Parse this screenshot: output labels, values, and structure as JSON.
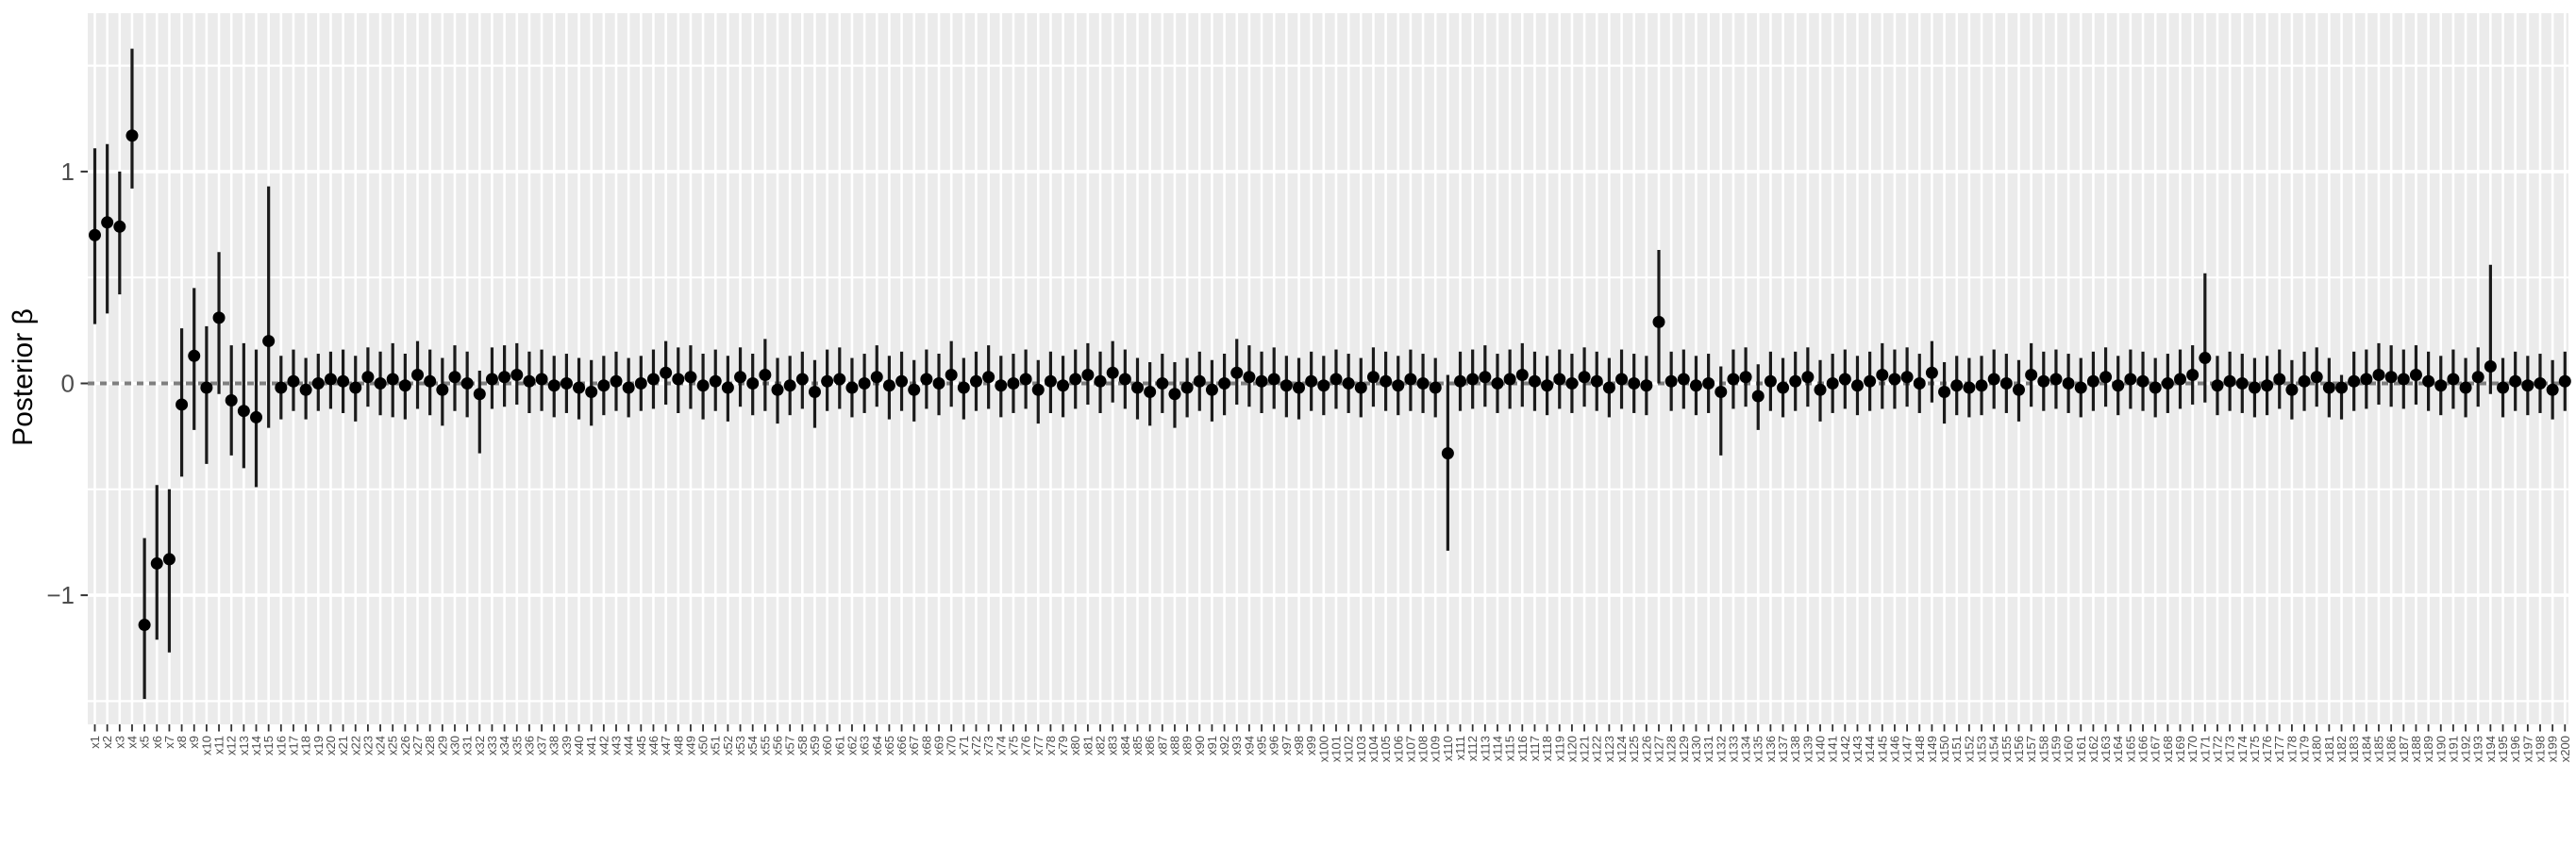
{
  "figure": {
    "y_axis": {
      "title": "Posterior β",
      "ticks": [
        {
          "label": "1",
          "value": 1
        },
        {
          "label": "0",
          "value": 0
        },
        {
          "label": "−1",
          "value": -1
        }
      ]
    }
  },
  "chart_data": {
    "type": "pointrange",
    "title": "",
    "xlabel": "",
    "ylabel": "Posterior β",
    "ylim": [
      -1.61,
      1.75
    ],
    "y_major_gridlines": [
      -1,
      0,
      1
    ],
    "y_minor_gridlines": [
      -1.5,
      -0.5,
      0.5,
      1.5
    ],
    "reference_line": {
      "y": 0,
      "style": "dashed"
    },
    "grid": true,
    "legend": false,
    "colors": {
      "panel_bg": "#EBEBEB",
      "gridline": "#FFFFFF",
      "point": "#000000",
      "range_line": "#1A1A1A",
      "zero_line": "#7F7F7F",
      "tick": "#333333",
      "tick_label": "#4D4D4D",
      "axis_title": "#000000"
    },
    "x_labels": [
      "x1",
      "x2",
      "x3",
      "x4",
      "x5",
      "x6",
      "x7",
      "x8",
      "x9",
      "x10",
      "x11",
      "x12",
      "x13",
      "x14",
      "x15",
      "x16",
      "x17",
      "x18",
      "x19",
      "x20",
      "x21",
      "x22",
      "x23",
      "x24",
      "x25",
      "x26",
      "x27",
      "x28",
      "x29",
      "x30",
      "x31",
      "x32",
      "x33",
      "x34",
      "x35",
      "x36",
      "x37",
      "x38",
      "x39",
      "x40",
      "x41",
      "x42",
      "x43",
      "x44",
      "x45",
      "x46",
      "x47",
      "x48",
      "x49",
      "x50",
      "x51",
      "x52",
      "x53",
      "x54",
      "x55",
      "x56",
      "x57",
      "x58",
      "x59",
      "x60",
      "x61",
      "x62",
      "x63",
      "x64",
      "x65",
      "x66",
      "x67",
      "x68",
      "x69",
      "x70",
      "x71",
      "x72",
      "x73",
      "x74",
      "x75",
      "x76",
      "x77",
      "x78",
      "x79",
      "x80",
      "x81",
      "x82",
      "x83",
      "x84",
      "x85",
      "x86",
      "x87",
      "x88",
      "x89",
      "x90",
      "x91",
      "x92",
      "x93",
      "x94",
      "x95",
      "x96",
      "x97",
      "x98",
      "x99",
      "x100",
      "x101",
      "x102",
      "x103",
      "x104",
      "x105",
      "x106",
      "x107",
      "x108",
      "x109",
      "x110",
      "x111",
      "x112",
      "x113",
      "x114",
      "x115",
      "x116",
      "x117",
      "x118",
      "x119",
      "x120",
      "x121",
      "x122",
      "x123",
      "x124",
      "x125",
      "x126",
      "x127",
      "x128",
      "x129",
      "x130",
      "x131",
      "x132",
      "x133",
      "x134",
      "x135",
      "x136",
      "x137",
      "x138",
      "x139",
      "x140",
      "x141",
      "x142",
      "x143",
      "x144",
      "x145",
      "x146",
      "x147",
      "x148",
      "x149",
      "x150",
      "x151",
      "x152",
      "x153",
      "x154",
      "x155",
      "x156",
      "x157",
      "x158",
      "x159",
      "x160",
      "x161",
      "x162",
      "x163",
      "x164",
      "x165",
      "x166",
      "x167",
      "x168",
      "x169",
      "x170",
      "x171",
      "x172",
      "x173",
      "x174",
      "x175",
      "x176",
      "x177",
      "x178",
      "x179",
      "x180",
      "x181",
      "x182",
      "x183",
      "x184",
      "x185",
      "x186",
      "x187",
      "x188",
      "x189",
      "x190",
      "x191",
      "x192",
      "x193",
      "x194",
      "x195",
      "x196",
      "x197",
      "x198",
      "x199",
      "x200"
    ],
    "series": [
      {
        "name": "posterior_beta",
        "mean": [
          0.7,
          0.76,
          0.74,
          1.17,
          -1.14,
          -0.85,
          -0.83,
          -0.1,
          0.13,
          -0.02,
          0.31,
          -0.08,
          -0.13,
          -0.16,
          0.2,
          -0.02,
          0.01,
          -0.03,
          0.0,
          0.02,
          0.01,
          -0.02,
          0.03,
          0.0,
          0.02,
          -0.01,
          0.04,
          0.01,
          -0.03,
          0.03,
          0.0,
          -0.05,
          0.02,
          0.03,
          0.04,
          0.01,
          0.02,
          -0.01,
          0.0,
          -0.02,
          -0.04,
          -0.01,
          0.01,
          -0.02,
          0.0,
          0.02,
          0.05,
          0.02,
          0.03,
          -0.01,
          0.01,
          -0.02,
          0.03,
          0.0,
          0.04,
          -0.03,
          -0.01,
          0.02,
          -0.04,
          0.01,
          0.02,
          -0.02,
          0.0,
          0.03,
          -0.01,
          0.01,
          -0.03,
          0.02,
          0.0,
          0.04,
          -0.02,
          0.01,
          0.03,
          -0.01,
          0.0,
          0.02,
          -0.03,
          0.01,
          -0.01,
          0.02,
          0.04,
          0.01,
          0.05,
          0.02,
          -0.02,
          -0.04,
          0.0,
          -0.05,
          -0.02,
          0.01,
          -0.03,
          0.0,
          0.05,
          0.03,
          0.01,
          0.02,
          -0.01,
          -0.02,
          0.01,
          -0.01,
          0.02,
          0.0,
          -0.02,
          0.03,
          0.01,
          -0.01,
          0.02,
          0.0,
          -0.02,
          -0.33,
          0.01,
          0.02,
          0.03,
          0.0,
          0.02,
          0.04,
          0.01,
          -0.01,
          0.02,
          0.0,
          0.03,
          0.01,
          -0.02,
          0.02,
          0.0,
          -0.01,
          0.29,
          0.01,
          0.02,
          -0.01,
          0.0,
          -0.04,
          0.02,
          0.03,
          -0.06,
          0.01,
          -0.02,
          0.01,
          0.03,
          -0.03,
          0.0,
          0.02,
          -0.01,
          0.01,
          0.04,
          0.02,
          0.03,
          0.0,
          0.05,
          -0.04,
          -0.01,
          -0.02,
          -0.01,
          0.02,
          0.0,
          -0.03,
          0.04,
          0.01,
          0.02,
          0.0,
          -0.02,
          0.01,
          0.03,
          -0.01,
          0.02,
          0.01,
          -0.02,
          0.0,
          0.02,
          0.04,
          0.12,
          -0.01,
          0.01,
          0.0,
          -0.02,
          -0.01,
          0.02,
          -0.03,
          0.01,
          0.03,
          -0.02,
          -0.02,
          0.01,
          0.02,
          0.04,
          0.03,
          0.02,
          0.04,
          0.01,
          -0.01,
          0.02,
          -0.02,
          0.03,
          0.08,
          -0.02,
          0.01,
          -0.01,
          0.0,
          -0.03,
          0.01
        ],
        "lower": [
          0.28,
          0.33,
          0.42,
          0.92,
          -1.49,
          -1.21,
          -1.27,
          -0.44,
          -0.22,
          -0.38,
          -0.05,
          -0.34,
          -0.4,
          -0.49,
          -0.21,
          -0.17,
          -0.13,
          -0.17,
          -0.13,
          -0.12,
          -0.14,
          -0.18,
          -0.11,
          -0.15,
          -0.16,
          -0.17,
          -0.12,
          -0.15,
          -0.2,
          -0.13,
          -0.16,
          -0.33,
          -0.12,
          -0.11,
          -0.1,
          -0.14,
          -0.13,
          -0.16,
          -0.14,
          -0.17,
          -0.2,
          -0.15,
          -0.13,
          -0.16,
          -0.13,
          -0.12,
          -0.1,
          -0.14,
          -0.12,
          -0.17,
          -0.13,
          -0.18,
          -0.11,
          -0.15,
          -0.13,
          -0.19,
          -0.15,
          -0.12,
          -0.21,
          -0.13,
          -0.12,
          -0.16,
          -0.14,
          -0.11,
          -0.17,
          -0.13,
          -0.18,
          -0.12,
          -0.15,
          -0.11,
          -0.17,
          -0.13,
          -0.12,
          -0.16,
          -0.14,
          -0.12,
          -0.19,
          -0.14,
          -0.16,
          -0.12,
          -0.1,
          -0.14,
          -0.09,
          -0.12,
          -0.17,
          -0.2,
          -0.14,
          -0.21,
          -0.16,
          -0.13,
          -0.18,
          -0.15,
          -0.1,
          -0.11,
          -0.14,
          -0.12,
          -0.16,
          -0.17,
          -0.13,
          -0.15,
          -0.12,
          -0.14,
          -0.16,
          -0.11,
          -0.13,
          -0.15,
          -0.13,
          -0.14,
          -0.16,
          -0.79,
          -0.13,
          -0.12,
          -0.11,
          -0.14,
          -0.12,
          -0.11,
          -0.13,
          -0.15,
          -0.12,
          -0.14,
          -0.11,
          -0.13,
          -0.16,
          -0.12,
          -0.14,
          -0.15,
          0.0,
          -0.13,
          -0.12,
          -0.15,
          -0.14,
          -0.34,
          -0.12,
          -0.11,
          -0.22,
          -0.13,
          -0.16,
          -0.13,
          -0.11,
          -0.18,
          -0.14,
          -0.12,
          -0.15,
          -0.13,
          -0.12,
          -0.12,
          -0.11,
          -0.14,
          -0.09,
          -0.19,
          -0.15,
          -0.16,
          -0.15,
          -0.12,
          -0.14,
          -0.18,
          -0.11,
          -0.13,
          -0.12,
          -0.14,
          -0.16,
          -0.13,
          -0.11,
          -0.15,
          -0.12,
          -0.13,
          -0.16,
          -0.14,
          -0.12,
          -0.1,
          -0.09,
          -0.15,
          -0.13,
          -0.14,
          -0.16,
          -0.15,
          -0.12,
          -0.17,
          -0.13,
          -0.11,
          -0.16,
          -0.17,
          -0.13,
          -0.12,
          -0.1,
          -0.11,
          -0.12,
          -0.1,
          -0.13,
          -0.15,
          -0.12,
          -0.16,
          -0.11,
          -0.05,
          -0.16,
          -0.13,
          -0.15,
          -0.14,
          -0.17,
          -0.13
        ],
        "upper": [
          1.11,
          1.13,
          1.0,
          1.58,
          -0.73,
          -0.48,
          -0.5,
          0.26,
          0.45,
          0.27,
          0.62,
          0.18,
          0.19,
          0.16,
          0.93,
          0.13,
          0.16,
          0.12,
          0.14,
          0.15,
          0.16,
          0.13,
          0.17,
          0.15,
          0.19,
          0.14,
          0.2,
          0.16,
          0.12,
          0.18,
          0.15,
          0.06,
          0.17,
          0.18,
          0.19,
          0.15,
          0.16,
          0.13,
          0.14,
          0.12,
          0.11,
          0.13,
          0.15,
          0.12,
          0.13,
          0.16,
          0.2,
          0.17,
          0.18,
          0.14,
          0.16,
          0.13,
          0.17,
          0.14,
          0.21,
          0.12,
          0.13,
          0.15,
          0.11,
          0.16,
          0.17,
          0.12,
          0.14,
          0.18,
          0.13,
          0.15,
          0.11,
          0.16,
          0.14,
          0.2,
          0.12,
          0.15,
          0.18,
          0.13,
          0.14,
          0.16,
          0.11,
          0.15,
          0.13,
          0.16,
          0.19,
          0.15,
          0.2,
          0.16,
          0.12,
          0.1,
          0.14,
          0.1,
          0.12,
          0.15,
          0.11,
          0.14,
          0.21,
          0.18,
          0.15,
          0.17,
          0.13,
          0.12,
          0.15,
          0.13,
          0.16,
          0.14,
          0.12,
          0.17,
          0.15,
          0.13,
          0.16,
          0.14,
          0.12,
          0.04,
          0.15,
          0.16,
          0.18,
          0.14,
          0.16,
          0.19,
          0.15,
          0.13,
          0.16,
          0.14,
          0.17,
          0.15,
          0.12,
          0.16,
          0.14,
          0.13,
          0.63,
          0.15,
          0.16,
          0.13,
          0.14,
          0.08,
          0.16,
          0.17,
          0.09,
          0.15,
          0.12,
          0.15,
          0.17,
          0.11,
          0.14,
          0.16,
          0.13,
          0.15,
          0.19,
          0.16,
          0.17,
          0.14,
          0.2,
          0.1,
          0.13,
          0.12,
          0.13,
          0.16,
          0.14,
          0.11,
          0.19,
          0.15,
          0.16,
          0.14,
          0.12,
          0.15,
          0.17,
          0.13,
          0.16,
          0.15,
          0.12,
          0.14,
          0.16,
          0.18,
          0.52,
          0.13,
          0.15,
          0.14,
          0.12,
          0.13,
          0.16,
          0.11,
          0.15,
          0.17,
          0.12,
          0.04,
          0.15,
          0.16,
          0.19,
          0.18,
          0.16,
          0.18,
          0.15,
          0.13,
          0.16,
          0.12,
          0.17,
          0.56,
          0.12,
          0.15,
          0.13,
          0.14,
          0.11,
          0.15
        ]
      }
    ]
  }
}
